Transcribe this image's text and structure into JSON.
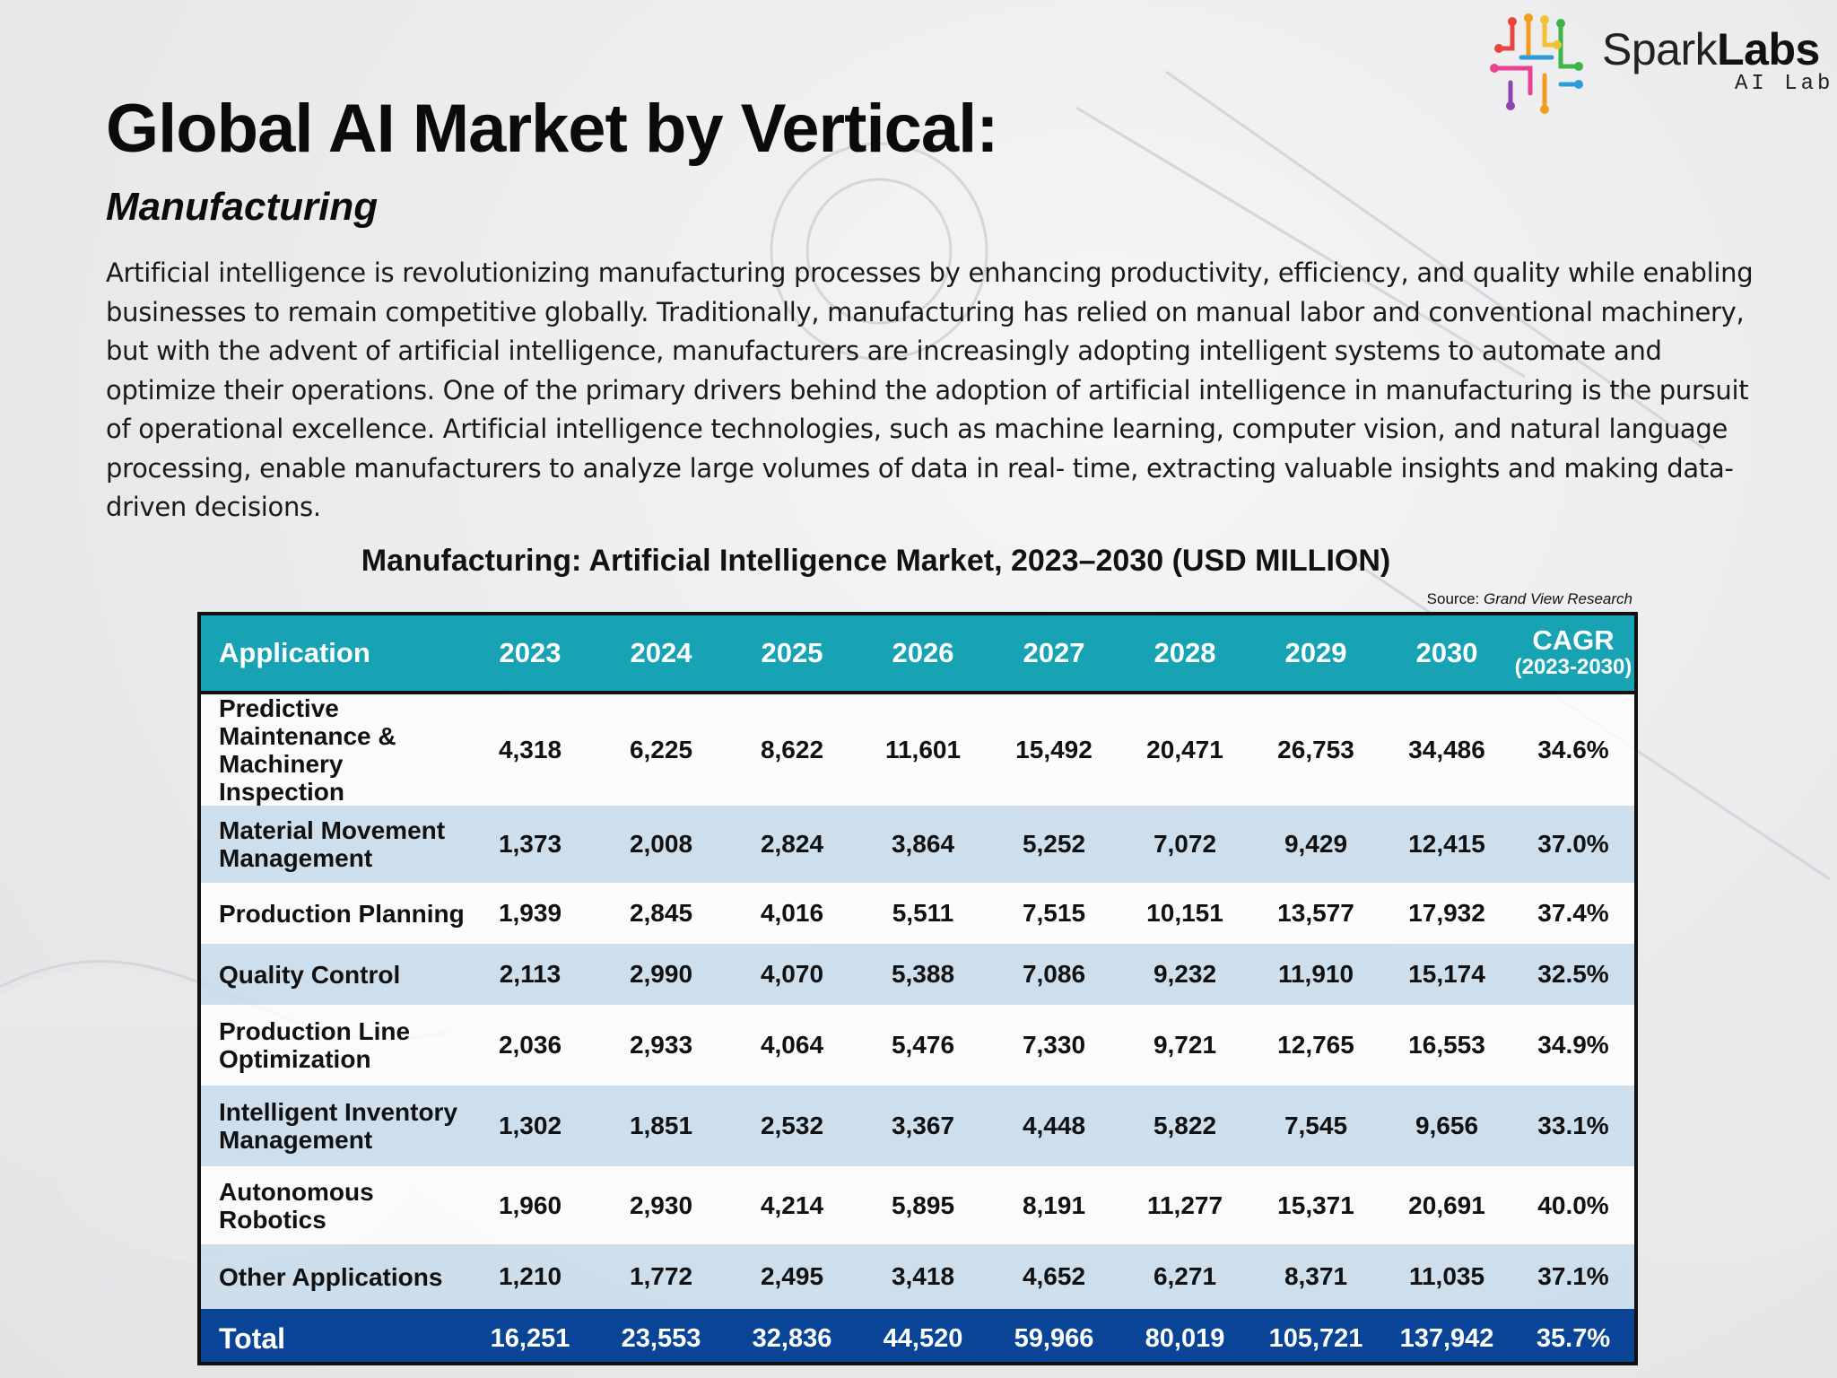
{
  "logo": {
    "word_regular": "Spark",
    "word_bold": "Labs",
    "tagline": "AI Lab",
    "icon": "circuit-brain-icon",
    "colors": [
      "#e8453c",
      "#f39a1f",
      "#f2c230",
      "#3db54a",
      "#2d9cdb",
      "#8e44ad",
      "#e84393"
    ]
  },
  "header": {
    "title": "Global AI Market by Vertical:",
    "subtitle": "Manufacturing"
  },
  "body": {
    "paragraph": "Artificial intelligence is revolutionizing manufacturing processes by enhancing productivity, efficiency, and quality while enabling businesses to remain competitive globally. Traditionally, manufacturing has relied on manual labor and conventional machinery, but with the advent of artificial intelligence, manufacturers are increasingly adopting intelligent systems to automate and optimize their operations. One of the primary drivers behind the adoption of artificial intelligence in manufacturing is the pursuit of operational excellence. Artificial intelligence technologies, such as machine learning, computer vision, and natural language processing, enable manufacturers to analyze large volumes of data in real- time, extracting valuable insights and making data-driven decisions."
  },
  "table": {
    "title": "Manufacturing: Artificial Intelligence Market, 2023–2030 (USD MILLION)",
    "source_label": "Source:",
    "source_name": "Grand View Research",
    "header_color": "#17a3b3",
    "total_color": "#0a4496",
    "stripe_color": "#c8dcec",
    "columns": {
      "application": "Application",
      "years": [
        "2023",
        "2024",
        "2025",
        "2026",
        "2027",
        "2028",
        "2029",
        "2030"
      ],
      "cagr": "CAGR",
      "cagr_period": "(2023-2030)"
    },
    "rows": [
      {
        "name": "Predictive Maintenance & Machinery Inspection",
        "values": [
          "4,318",
          "6,225",
          "8,622",
          "11,601",
          "15,492",
          "20,471",
          "26,753",
          "34,486"
        ],
        "cagr": "34.6%"
      },
      {
        "name": "Material Movement Management",
        "values": [
          "1,373",
          "2,008",
          "2,824",
          "3,864",
          "5,252",
          "7,072",
          "9,429",
          "12,415"
        ],
        "cagr": "37.0%"
      },
      {
        "name": "Production Planning",
        "values": [
          "1,939",
          "2,845",
          "4,016",
          "5,511",
          "7,515",
          "10,151",
          "13,577",
          "17,932"
        ],
        "cagr": "37.4%"
      },
      {
        "name": "Quality Control",
        "values": [
          "2,113",
          "2,990",
          "4,070",
          "5,388",
          "7,086",
          "9,232",
          "11,910",
          "15,174"
        ],
        "cagr": "32.5%"
      },
      {
        "name": "Production Line Optimization",
        "values": [
          "2,036",
          "2,933",
          "4,064",
          "5,476",
          "7,330",
          "9,721",
          "12,765",
          "16,553"
        ],
        "cagr": "34.9%"
      },
      {
        "name": "Intelligent Inventory Management",
        "values": [
          "1,302",
          "1,851",
          "2,532",
          "3,367",
          "4,448",
          "5,822",
          "7,545",
          "9,656"
        ],
        "cagr": "33.1%"
      },
      {
        "name": "Autonomous Robotics",
        "values": [
          "1,960",
          "2,930",
          "4,214",
          "5,895",
          "8,191",
          "11,277",
          "15,371",
          "20,691"
        ],
        "cagr": "40.0%"
      },
      {
        "name": "Other Applications",
        "values": [
          "1,210",
          "1,772",
          "2,495",
          "3,418",
          "4,652",
          "6,271",
          "8,371",
          "11,035"
        ],
        "cagr": "37.1%"
      }
    ],
    "total": {
      "name": "Total",
      "values": [
        "16,251",
        "23,553",
        "32,836",
        "44,520",
        "59,966",
        "80,019",
        "105,721",
        "137,942"
      ],
      "cagr": "35.7%"
    }
  }
}
